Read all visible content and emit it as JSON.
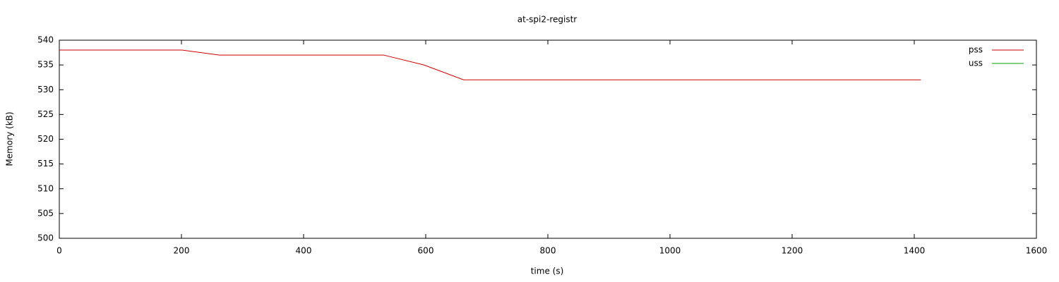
{
  "chart_data": {
    "type": "line",
    "title": "at-spi2-registr",
    "x_label": "time (s)",
    "y_label": "Memory (kB)",
    "x": [
      0,
      201,
      262,
      531,
      597,
      662,
      1411
    ],
    "series": [
      {
        "name": "pss",
        "color": "#cc0000",
        "values": [
          538,
          538,
          537,
          537,
          535,
          532,
          532
        ]
      },
      {
        "name": "uss",
        "color": "#00a000",
        "values": [
          null,
          null,
          null,
          null,
          null,
          null,
          null
        ]
      }
    ],
    "xlim": [
      0,
      1600
    ],
    "xticks": [
      0,
      200,
      400,
      600,
      800,
      1000,
      1200,
      1400,
      1600
    ],
    "ylim": [
      500,
      540
    ],
    "yticks": [
      500,
      505,
      510,
      515,
      520,
      525,
      530,
      535,
      540
    ],
    "grid": false,
    "legend": "top-right"
  }
}
